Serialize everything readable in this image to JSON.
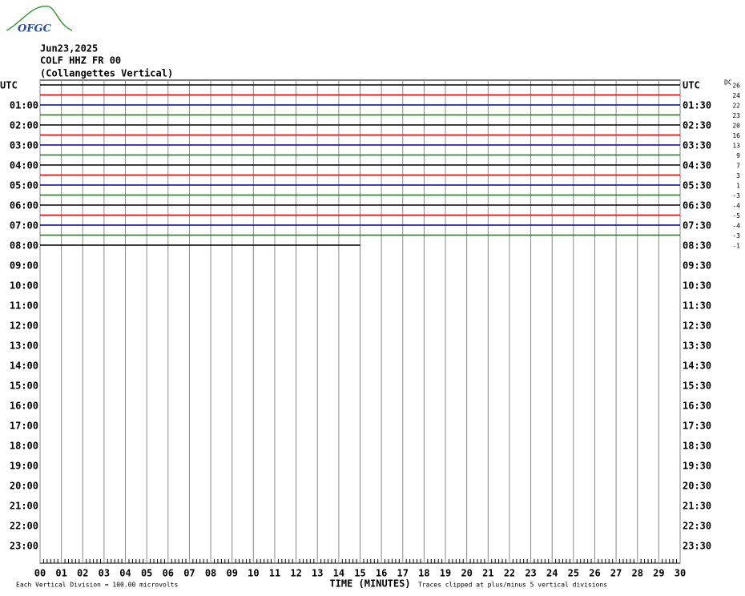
{
  "logo": "OFGC",
  "header": {
    "date": "Jun23,2025",
    "station": "COLF HHZ FR 00",
    "location": "(Collangettes Vertical)"
  },
  "left_labels": [
    "UTC",
    "01:00",
    "02:00",
    "03:00",
    "04:00",
    "05:00",
    "06:00",
    "07:00",
    "08:00",
    "09:00",
    "10:00",
    "11:00",
    "12:00",
    "13:00",
    "14:00",
    "15:00",
    "16:00",
    "17:00",
    "18:00",
    "19:00",
    "20:00",
    "21:00",
    "22:00",
    "23:00"
  ],
  "right_labels": [
    "UTC",
    "01:30",
    "02:30",
    "03:30",
    "04:30",
    "05:30",
    "06:30",
    "07:30",
    "08:30",
    "09:30",
    "10:30",
    "11:30",
    "12:30",
    "13:30",
    "14:30",
    "15:30",
    "16:30",
    "17:30",
    "18:30",
    "19:30",
    "20:30",
    "21:30",
    "22:30",
    "23:30"
  ],
  "dc": {
    "label": "DC",
    "values": [
      26,
      24,
      22,
      23,
      20,
      16,
      13,
      9,
      7,
      3,
      1,
      -3,
      -4,
      -5,
      -4,
      -3,
      -1
    ]
  },
  "x_axis": {
    "ticks": [
      "00",
      "01",
      "02",
      "03",
      "04",
      "05",
      "06",
      "07",
      "08",
      "09",
      "10",
      "11",
      "12",
      "13",
      "14",
      "15",
      "16",
      "17",
      "18",
      "19",
      "20",
      "21",
      "22",
      "23",
      "24",
      "25",
      "26",
      "27",
      "28",
      "29",
      "30"
    ],
    "title": "TIME (MINUTES)"
  },
  "footer": {
    "division": "Each Vertical Division =  100.00 microvolts",
    "clip": "Traces clipped at plus/minus 5 vertical divisions"
  }
}
